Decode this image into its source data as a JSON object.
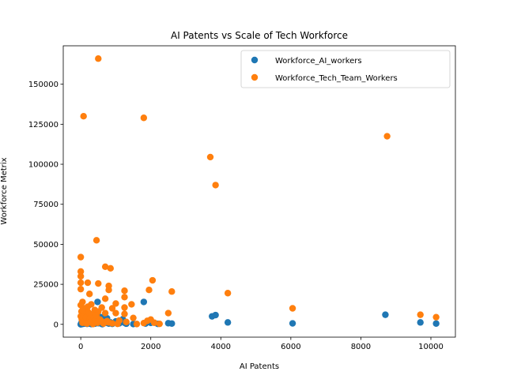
{
  "chart_data": {
    "type": "scatter",
    "title": "AI Patents vs Scale of Tech Workforce",
    "xlabel": "AI Patents",
    "ylabel": "Workforce Metrix",
    "xlim": [
      -500,
      10700
    ],
    "ylim": [
      -8000,
      174000
    ],
    "xticks": [
      0,
      2000,
      4000,
      6000,
      8000,
      10000
    ],
    "yticks": [
      0,
      25000,
      50000,
      75000,
      100000,
      125000,
      150000
    ],
    "grid": false,
    "legend_position": "top-right",
    "series": [
      {
        "name": "Workforce_AI_workers",
        "color": "#1f77b4",
        "points": [
          [
            0,
            0
          ],
          [
            10,
            300
          ],
          [
            20,
            800
          ],
          [
            30,
            1500
          ],
          [
            40,
            200
          ],
          [
            50,
            2500
          ],
          [
            60,
            600
          ],
          [
            80,
            1200
          ],
          [
            90,
            400
          ],
          [
            100,
            3000
          ],
          [
            120,
            700
          ],
          [
            150,
            1800
          ],
          [
            180,
            300
          ],
          [
            200,
            2200
          ],
          [
            220,
            900
          ],
          [
            250,
            500
          ],
          [
            280,
            1500
          ],
          [
            300,
            200
          ],
          [
            320,
            3500
          ],
          [
            350,
            800
          ],
          [
            380,
            2000
          ],
          [
            400,
            400
          ],
          [
            420,
            1000
          ],
          [
            450,
            6000
          ],
          [
            480,
            14000
          ],
          [
            500,
            700
          ],
          [
            550,
            1500
          ],
          [
            600,
            300
          ],
          [
            650,
            2500
          ],
          [
            700,
            900
          ],
          [
            750,
            3800
          ],
          [
            800,
            500
          ],
          [
            850,
            1200
          ],
          [
            900,
            300
          ],
          [
            1000,
            1800
          ],
          [
            1100,
            600
          ],
          [
            1200,
            3200
          ],
          [
            1250,
            1000
          ],
          [
            1300,
            400
          ],
          [
            1500,
            200
          ],
          [
            1800,
            14000
          ],
          [
            1850,
            500
          ],
          [
            2000,
            900
          ],
          [
            2200,
            300
          ],
          [
            2500,
            700
          ],
          [
            2600,
            500
          ],
          [
            3750,
            5000
          ],
          [
            3850,
            5800
          ],
          [
            4200,
            1200
          ],
          [
            6050,
            600
          ],
          [
            8700,
            6000
          ],
          [
            9700,
            1200
          ],
          [
            10150,
            500
          ],
          [
            40,
            5000
          ],
          [
            160,
            4000
          ],
          [
            260,
            6500
          ],
          [
            330,
            1700
          ],
          [
            460,
            2600
          ],
          [
            580,
            4500
          ],
          [
            620,
            100
          ]
        ]
      },
      {
        "name": "Workforce_Tech_Team_Workers",
        "color": "#ff7f0e",
        "points": [
          [
            500,
            166000
          ],
          [
            80,
            130000
          ],
          [
            1800,
            129000
          ],
          [
            8750,
            117500
          ],
          [
            3700,
            104500
          ],
          [
            3850,
            87000
          ],
          [
            450,
            52500
          ],
          [
            0,
            42000
          ],
          [
            0,
            33000
          ],
          [
            0,
            30000
          ],
          [
            700,
            36000
          ],
          [
            850,
            35000
          ],
          [
            200,
            26000
          ],
          [
            0,
            26000
          ],
          [
            500,
            25500
          ],
          [
            800,
            24000
          ],
          [
            2050,
            27500
          ],
          [
            1250,
            21000
          ],
          [
            2600,
            20500
          ],
          [
            4200,
            19500
          ],
          [
            0,
            22000
          ],
          [
            250,
            19000
          ],
          [
            800,
            21500
          ],
          [
            1950,
            21500
          ],
          [
            1250,
            17000
          ],
          [
            700,
            16000
          ],
          [
            50,
            14000
          ],
          [
            0,
            12000
          ],
          [
            100,
            10000
          ],
          [
            200,
            11000
          ],
          [
            300,
            12500
          ],
          [
            400,
            9000
          ],
          [
            500,
            8000
          ],
          [
            600,
            10500
          ],
          [
            700,
            7000
          ],
          [
            900,
            10000
          ],
          [
            1000,
            13000
          ],
          [
            1250,
            10500
          ],
          [
            1450,
            12500
          ],
          [
            1000,
            7000
          ],
          [
            1250,
            6500
          ],
          [
            1500,
            4000
          ],
          [
            6050,
            10000
          ],
          [
            2500,
            7000
          ],
          [
            2000,
            3000
          ],
          [
            2100,
            1000
          ],
          [
            2250,
            300
          ],
          [
            9700,
            6000
          ],
          [
            10150,
            4500
          ],
          [
            1600,
            200
          ],
          [
            0,
            5000
          ],
          [
            20,
            8000
          ],
          [
            30,
            3000
          ],
          [
            50,
            1000
          ],
          [
            80,
            6000
          ],
          [
            120,
            2000
          ],
          [
            150,
            4500
          ],
          [
            180,
            500
          ],
          [
            220,
            7500
          ],
          [
            250,
            3500
          ],
          [
            280,
            1500
          ],
          [
            320,
            6000
          ],
          [
            350,
            200
          ],
          [
            380,
            4000
          ],
          [
            420,
            2500
          ],
          [
            450,
            5500
          ],
          [
            480,
            1000
          ],
          [
            550,
            3000
          ],
          [
            600,
            1800
          ],
          [
            650,
            500
          ],
          [
            750,
            2000
          ],
          [
            800,
            1200
          ],
          [
            900,
            600
          ],
          [
            1050,
            300
          ],
          [
            1100,
            2400
          ],
          [
            1300,
            1500
          ],
          [
            1800,
            800
          ],
          [
            1900,
            2200
          ],
          [
            60,
            9000
          ],
          [
            140,
            800
          ]
        ]
      }
    ]
  }
}
